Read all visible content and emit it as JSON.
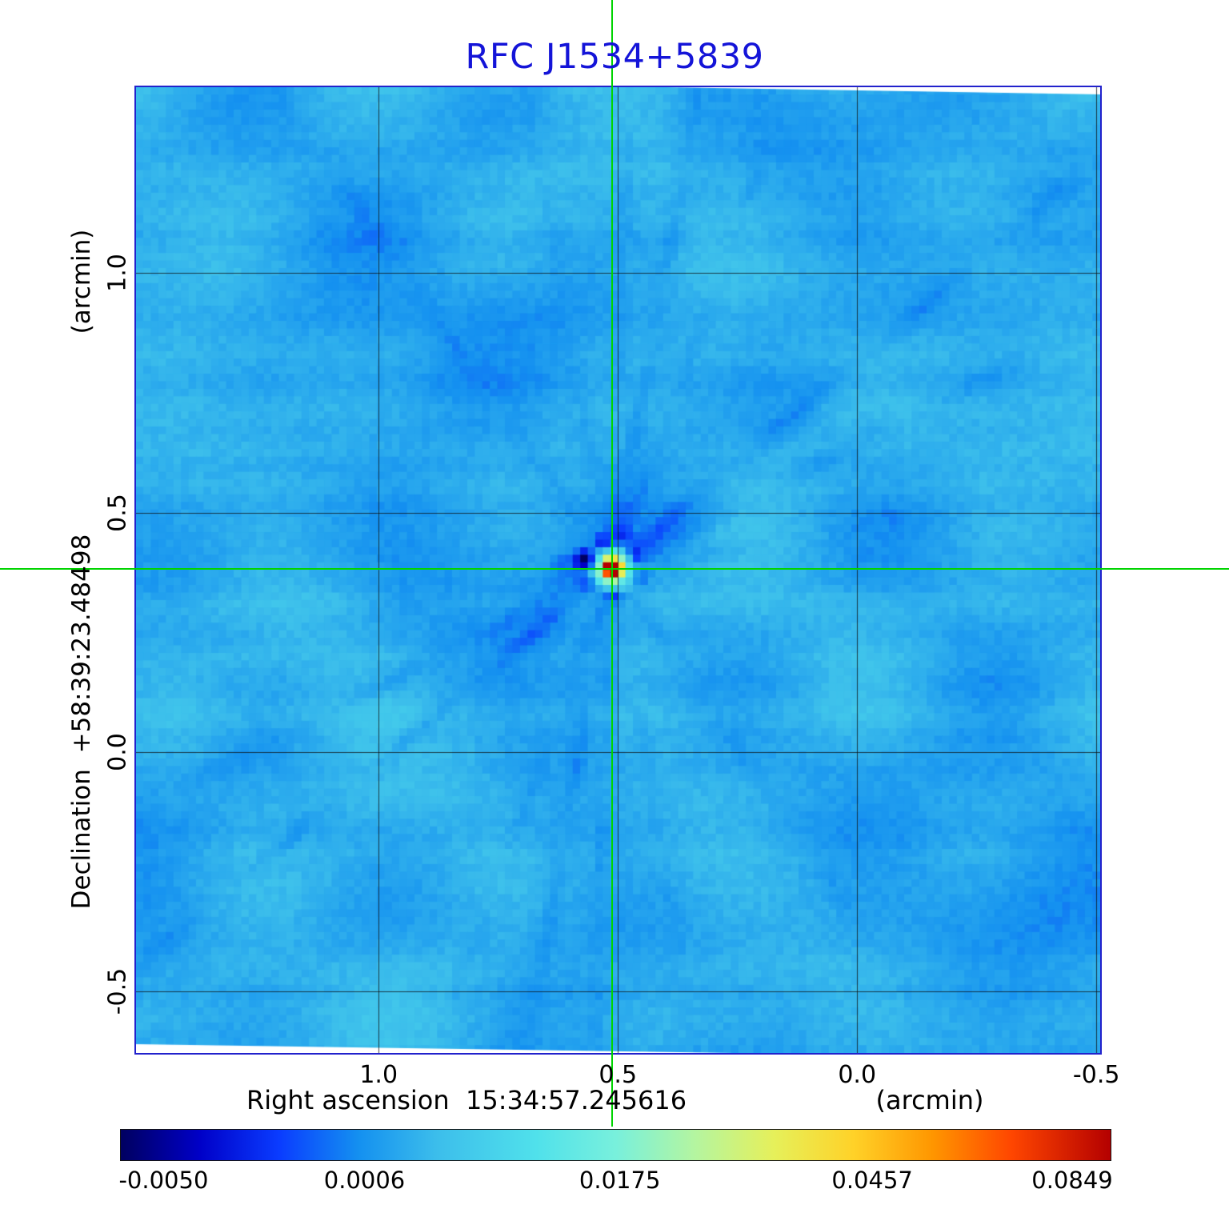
{
  "chart_data": {
    "type": "heatmap",
    "title": "RFC J1534+5839",
    "title_color": "#1414d8",
    "frame_color": "#2222cc",
    "x_axis": {
      "label": "Right ascension  15:34:57.245616",
      "unit": "(arcmin)",
      "range": [
        1.507,
        -0.508
      ],
      "ticks": [
        {
          "value": 1.0,
          "label": "1.0"
        },
        {
          "value": 0.5,
          "label": "0.5"
        },
        {
          "value": 0.0,
          "label": "0.0"
        },
        {
          "value": -0.5,
          "label": "-0.5"
        }
      ]
    },
    "y_axis": {
      "label": "Declination  +58:39:23.48498",
      "unit": "(arcmin)",
      "range": [
        -0.628,
        1.388
      ],
      "ticks": [
        {
          "value": 1.0,
          "label": "1.0"
        },
        {
          "value": 0.5,
          "label": "0.5"
        },
        {
          "value": 0.0,
          "label": "0.0"
        },
        {
          "value": -0.5,
          "label": "-0.5"
        }
      ]
    },
    "grid": true,
    "grid_color": "#141414",
    "crosshair": {
      "ra": 0.512,
      "dec": 0.383,
      "color": "#00d400"
    },
    "background_level": 0.29,
    "colorbar": {
      "min": -0.005,
      "max": 0.0849,
      "ticks": [
        {
          "label": "-0.0050",
          "position": 0.044
        },
        {
          "label": "0.0006",
          "position": 0.247
        },
        {
          "label": "0.0175",
          "position": 0.505
        },
        {
          "label": "0.0457",
          "position": 0.76
        },
        {
          "label": "0.0849",
          "position": 0.962
        }
      ]
    },
    "colormap_stops": [
      {
        "p": 0.0,
        "c": "#000060"
      },
      {
        "p": 0.08,
        "c": "#0000c8"
      },
      {
        "p": 0.16,
        "c": "#0a3cff"
      },
      {
        "p": 0.24,
        "c": "#1490f0"
      },
      {
        "p": 0.32,
        "c": "#3cbeeb"
      },
      {
        "p": 0.42,
        "c": "#50e1eb"
      },
      {
        "p": 0.5,
        "c": "#78f0dc"
      },
      {
        "p": 0.58,
        "c": "#b4f5a0"
      },
      {
        "p": 0.66,
        "c": "#e6f05a"
      },
      {
        "p": 0.74,
        "c": "#ffd228"
      },
      {
        "p": 0.82,
        "c": "#ff9600"
      },
      {
        "p": 0.9,
        "c": "#ff4600"
      },
      {
        "p": 1.0,
        "c": "#b40000"
      }
    ]
  }
}
